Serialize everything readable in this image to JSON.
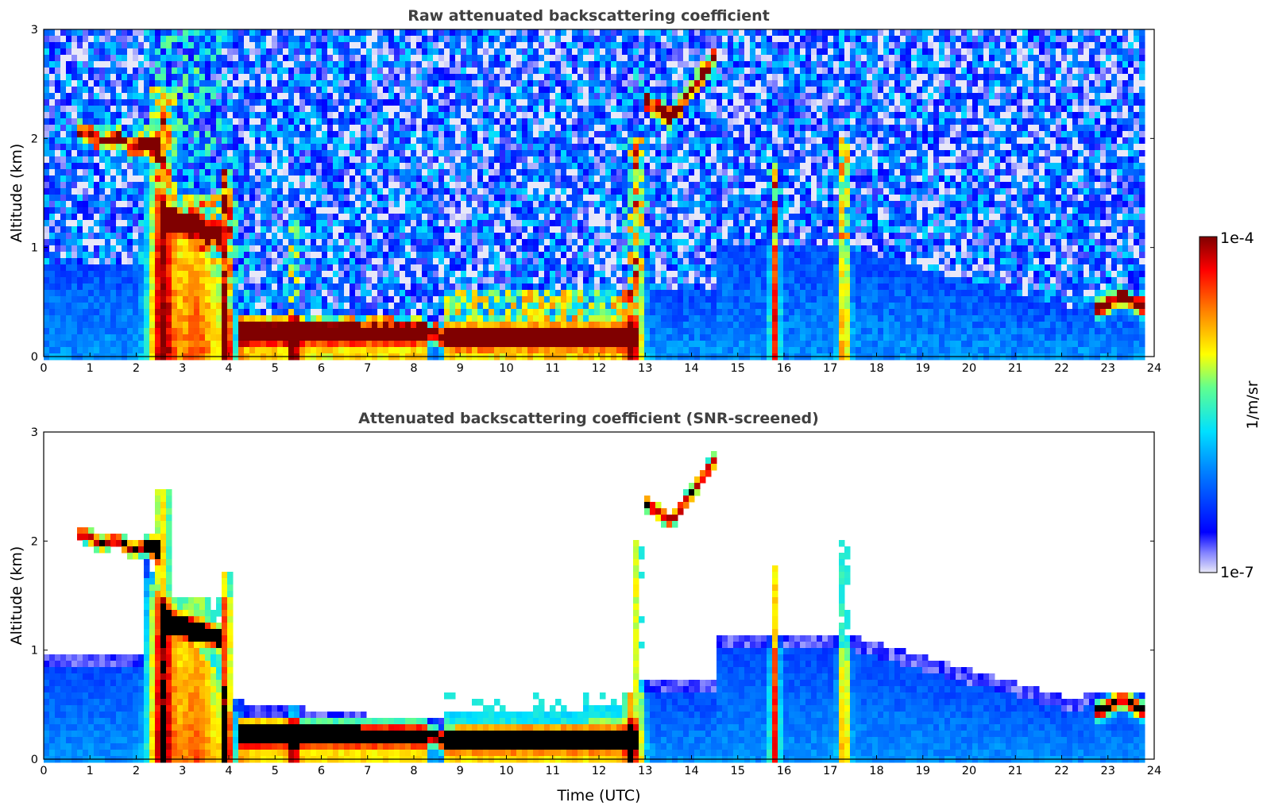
{
  "chart_data": [
    {
      "type": "heatmap",
      "title": "Raw attenuated backscattering coefficient",
      "xlabel": "",
      "ylabel": "Altitude (km)",
      "xlim": [
        0,
        24
      ],
      "ylim": [
        0,
        3
      ],
      "xticks": [
        "0",
        "1",
        "2",
        "3",
        "4",
        "5",
        "6",
        "7",
        "8",
        "9",
        "10",
        "11",
        "12",
        "13",
        "14",
        "15",
        "16",
        "17",
        "18",
        "19",
        "20",
        "21",
        "22",
        "23",
        "24"
      ],
      "yticks": [
        "0",
        "1",
        "2",
        "3"
      ],
      "features": [
        {
          "feature": "elevated cloud layer",
          "x": [
            0.7,
            2.4
          ],
          "y": [
            1.9,
            2.1
          ]
        },
        {
          "feature": "boundary layer aerosol top",
          "x": [
            4.3,
            12.7
          ],
          "y": [
            0.1,
            0.4
          ]
        },
        {
          "feature": "rising cloud layer",
          "x": [
            12.9,
            14.5
          ],
          "y": [
            2.2,
            2.8
          ]
        },
        {
          "feature": "low cloud layer",
          "x": [
            22.7,
            23.8
          ],
          "y": [
            0.4,
            0.55
          ]
        }
      ]
    },
    {
      "type": "heatmap",
      "title": "Attenuated backscattering coefficient (SNR-screened)",
      "xlabel": "Time (UTC)",
      "ylabel": "Altitude (km)",
      "xlim": [
        0,
        24
      ],
      "ylim": [
        0,
        3
      ],
      "xticks": [
        "0",
        "1",
        "2",
        "3",
        "4",
        "5",
        "6",
        "7",
        "8",
        "9",
        "10",
        "11",
        "12",
        "13",
        "14",
        "15",
        "16",
        "17",
        "18",
        "19",
        "20",
        "21",
        "22",
        "23",
        "24"
      ],
      "yticks": [
        "0",
        "1",
        "2",
        "3"
      ]
    }
  ],
  "colorbar": {
    "label": "1/m/sr",
    "min_label": "1e-7",
    "max_label": "1e-4",
    "scale": "log",
    "colormap": "jet",
    "range": [
      1e-07,
      0.0001
    ]
  },
  "colors": {
    "title": "#404040",
    "colormap_stops": [
      "#e8e8f8",
      "#0000ff",
      "#00a0ff",
      "#00ffff",
      "#80ff80",
      "#ffff00",
      "#ff8000",
      "#ff0000",
      "#800000"
    ],
    "screened_peak": "#000000"
  }
}
